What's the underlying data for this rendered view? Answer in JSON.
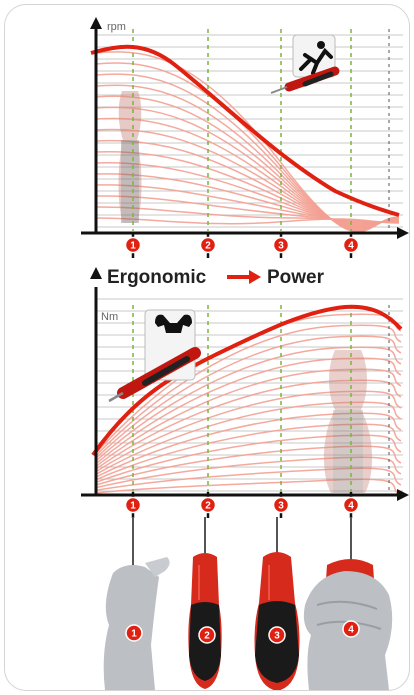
{
  "top_chart": {
    "y_label": "rpm",
    "markers": [
      "1",
      "2",
      "3",
      "4"
    ]
  },
  "bottom_chart": {
    "title_left": "Ergonomic",
    "title_right": "Power",
    "y_label": "Nm",
    "markers": [
      "1",
      "2",
      "3",
      "4"
    ]
  },
  "photos": {
    "badges": [
      "1",
      "2",
      "3",
      "4"
    ]
  },
  "colors": {
    "curve": "#e02010",
    "fan": "#f3a092",
    "grid": "#c8c8c8",
    "marker_line": "#7cb342",
    "badge": "#e02010"
  }
}
